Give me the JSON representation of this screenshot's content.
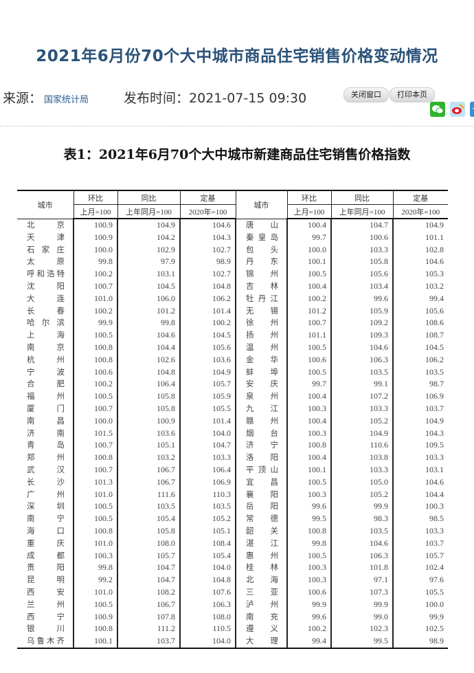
{
  "page": {
    "title": "2021年6月份70个大中城市商品住宅销售价格变动情况",
    "source_label": "来源：",
    "source_value": "国家统计局",
    "publish_label": "发布时间：",
    "publish_time": "2021-07-15 09:30",
    "buttons": {
      "close": "关闭窗口",
      "print": "打印本页"
    },
    "share_icons": [
      "wechat-icon",
      "weibo-icon",
      "qzone-icon"
    ],
    "title_color": "#2b5279"
  },
  "table": {
    "title": "表1：2021年6月70个大中城市新建商品住宅销售价格指数",
    "headers": {
      "city": "城市",
      "mom": "环比",
      "mom_base": "上月=100",
      "yoy": "同比",
      "yoy_base": "上年同月=100",
      "fixed": "定基",
      "fixed_base": "2020年=100"
    },
    "rows": [
      [
        [
          "北京",
          "100.9",
          "104.9",
          "104.6"
        ],
        [
          "唐山",
          "100.4",
          "104.7",
          "104.9"
        ]
      ],
      [
        [
          "天津",
          "100.9",
          "104.2",
          "104.3"
        ],
        [
          "秦皇岛",
          "99.7",
          "100.6",
          "101.1"
        ]
      ],
      [
        [
          "石家庄",
          "100.0",
          "102.9",
          "102.7"
        ],
        [
          "包头",
          "100.0",
          "103.3",
          "102.8"
        ]
      ],
      [
        [
          "太原",
          "99.8",
          "97.9",
          "98.9"
        ],
        [
          "丹东",
          "100.1",
          "105.8",
          "104.6"
        ]
      ],
      [
        [
          "呼和浩特",
          "100.2",
          "103.1",
          "102.7"
        ],
        [
          "锦州",
          "100.5",
          "105.6",
          "105.3"
        ]
      ],
      [
        [
          "沈阳",
          "100.7",
          "104.5",
          "104.8"
        ],
        [
          "吉林",
          "100.4",
          "103.4",
          "103.2"
        ]
      ],
      [
        [
          "大连",
          "101.0",
          "106.0",
          "106.2"
        ],
        [
          "牡丹江",
          "100.2",
          "99.6",
          "99.4"
        ]
      ],
      [
        [
          "长春",
          "100.2",
          "101.2",
          "101.4"
        ],
        [
          "无锡",
          "101.2",
          "105.9",
          "105.6"
        ]
      ],
      [
        [
          "哈尔滨",
          "99.9",
          "99.8",
          "100.2"
        ],
        [
          "徐州",
          "100.7",
          "109.2",
          "108.6"
        ]
      ],
      [
        [
          "上海",
          "100.5",
          "104.6",
          "104.5"
        ],
        [
          "扬州",
          "101.1",
          "109.3",
          "108.7"
        ]
      ],
      [
        [
          "南京",
          "100.8",
          "104.4",
          "105.6"
        ],
        [
          "温州",
          "100.5",
          "104.6",
          "104.5"
        ]
      ],
      [
        [
          "杭州",
          "100.8",
          "102.6",
          "103.6"
        ],
        [
          "金华",
          "100.6",
          "106.3",
          "106.2"
        ]
      ],
      [
        [
          "宁波",
          "100.6",
          "104.8",
          "104.9"
        ],
        [
          "蚌埠",
          "100.5",
          "103.5",
          "103.5"
        ]
      ],
      [
        [
          "合肥",
          "100.2",
          "106.4",
          "105.7"
        ],
        [
          "安庆",
          "99.7",
          "99.1",
          "98.7"
        ]
      ],
      [
        [
          "福州",
          "100.5",
          "105.8",
          "105.9"
        ],
        [
          "泉州",
          "100.4",
          "107.2",
          "106.9"
        ]
      ],
      [
        [
          "厦门",
          "100.7",
          "105.8",
          "105.5"
        ],
        [
          "九江",
          "100.3",
          "103.3",
          "103.7"
        ]
      ],
      [
        [
          "南昌",
          "100.0",
          "100.9",
          "101.4"
        ],
        [
          "赣州",
          "100.4",
          "105.2",
          "104.9"
        ]
      ],
      [
        [
          "济南",
          "101.5",
          "103.6",
          "104.0"
        ],
        [
          "烟台",
          "100.3",
          "104.9",
          "104.3"
        ]
      ],
      [
        [
          "青岛",
          "100.7",
          "105.1",
          "104.7"
        ],
        [
          "济宁",
          "100.8",
          "110.6",
          "109.5"
        ]
      ],
      [
        [
          "郑州",
          "100.8",
          "103.2",
          "103.3"
        ],
        [
          "洛阳",
          "100.4",
          "103.8",
          "103.3"
        ]
      ],
      [
        [
          "武汉",
          "100.7",
          "106.7",
          "106.4"
        ],
        [
          "平顶山",
          "100.1",
          "103.3",
          "103.1"
        ]
      ],
      [
        [
          "长沙",
          "101.3",
          "106.7",
          "106.9"
        ],
        [
          "宜昌",
          "100.5",
          "105.0",
          "104.6"
        ]
      ],
      [
        [
          "广州",
          "101.0",
          "111.6",
          "110.3"
        ],
        [
          "襄阳",
          "100.3",
          "105.2",
          "104.4"
        ]
      ],
      [
        [
          "深圳",
          "100.5",
          "103.5",
          "103.5"
        ],
        [
          "岳阳",
          "99.6",
          "99.9",
          "100.3"
        ]
      ],
      [
        [
          "南宁",
          "100.5",
          "105.4",
          "105.2"
        ],
        [
          "常德",
          "99.5",
          "98.3",
          "98.5"
        ]
      ],
      [
        [
          "海口",
          "100.8",
          "105.8",
          "105.1"
        ],
        [
          "韶关",
          "100.8",
          "103.5",
          "103.3"
        ]
      ],
      [
        [
          "重庆",
          "101.0",
          "108.0",
          "108.4"
        ],
        [
          "湛江",
          "99.8",
          "104.6",
          "103.7"
        ]
      ],
      [
        [
          "成都",
          "100.3",
          "105.7",
          "105.4"
        ],
        [
          "惠州",
          "100.5",
          "106.3",
          "105.7"
        ]
      ],
      [
        [
          "贵阳",
          "99.8",
          "104.7",
          "104.0"
        ],
        [
          "桂林",
          "100.3",
          "101.8",
          "102.4"
        ]
      ],
      [
        [
          "昆明",
          "99.2",
          "104.7",
          "104.8"
        ],
        [
          "北海",
          "100.3",
          "97.1",
          "97.6"
        ]
      ],
      [
        [
          "西安",
          "101.0",
          "108.2",
          "107.6"
        ],
        [
          "三亚",
          "100.6",
          "107.3",
          "105.5"
        ]
      ],
      [
        [
          "兰州",
          "100.5",
          "106.7",
          "106.3"
        ],
        [
          "泸州",
          "99.9",
          "99.9",
          "100.0"
        ]
      ],
      [
        [
          "西宁",
          "100.9",
          "107.8",
          "108.0"
        ],
        [
          "南充",
          "99.6",
          "99.0",
          "99.9"
        ]
      ],
      [
        [
          "银川",
          "100.8",
          "111.2",
          "110.5"
        ],
        [
          "遵义",
          "100.2",
          "102.3",
          "102.5"
        ]
      ],
      [
        [
          "乌鲁木齐",
          "100.1",
          "103.7",
          "104.0"
        ],
        [
          "大理",
          "99.4",
          "99.5",
          "98.9"
        ]
      ]
    ]
  }
}
